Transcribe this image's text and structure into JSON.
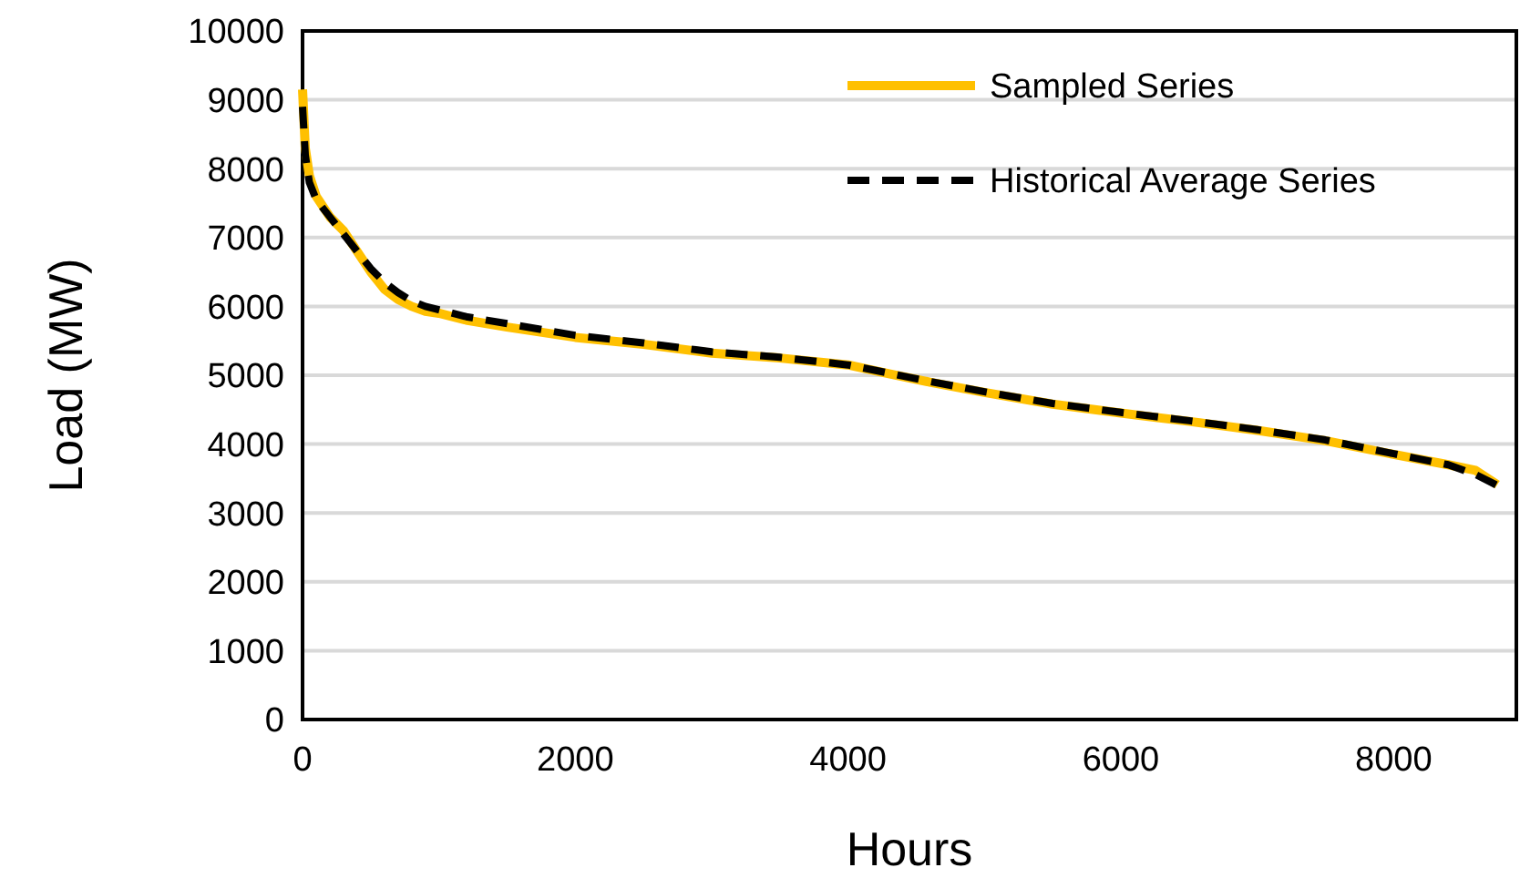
{
  "chart_data": {
    "type": "line",
    "xlabel": "Hours",
    "ylabel": "Load (MW)",
    "xlim": [
      0,
      8900
    ],
    "xticks": [
      0,
      2000,
      4000,
      6000,
      8000
    ],
    "ylim": [
      0,
      10000
    ],
    "yticks": [
      0,
      1000,
      2000,
      3000,
      4000,
      5000,
      6000,
      7000,
      8000,
      9000,
      10000
    ],
    "grid": "y",
    "legend": "top right",
    "series": [
      {
        "name": "Sampled Series",
        "color": "#ffc000",
        "line_style": "solid",
        "x": [
          0,
          20,
          50,
          100,
          200,
          300,
          400,
          500,
          600,
          700,
          800,
          900,
          1000,
          1200,
          1500,
          2000,
          2500,
          3000,
          3500,
          4000,
          4300,
          4600,
          5000,
          5500,
          6000,
          6500,
          7000,
          7500,
          8000,
          8400,
          8600,
          8760
        ],
        "values": [
          9150,
          8300,
          7900,
          7600,
          7300,
          7100,
          6800,
          6500,
          6250,
          6100,
          6000,
          5930,
          5900,
          5800,
          5700,
          5550,
          5450,
          5320,
          5250,
          5150,
          5020,
          4900,
          4750,
          4580,
          4450,
          4330,
          4200,
          4050,
          3850,
          3700,
          3620,
          3410
        ]
      },
      {
        "name": "Historical Average Series",
        "color": "#000000",
        "line_style": "dashed",
        "x": [
          0,
          20,
          50,
          100,
          200,
          300,
          400,
          500,
          600,
          700,
          800,
          900,
          1000,
          1200,
          1500,
          2000,
          2500,
          3000,
          3500,
          4000,
          4300,
          4600,
          5000,
          5500,
          6000,
          6500,
          7000,
          7500,
          8000,
          8400,
          8600,
          8760
        ],
        "values": [
          8900,
          8200,
          7800,
          7550,
          7300,
          7050,
          6800,
          6550,
          6350,
          6200,
          6080,
          6000,
          5950,
          5850,
          5750,
          5580,
          5470,
          5340,
          5260,
          5150,
          5030,
          4910,
          4760,
          4590,
          4460,
          4340,
          4210,
          4060,
          3860,
          3700,
          3560,
          3400
        ]
      }
    ]
  }
}
